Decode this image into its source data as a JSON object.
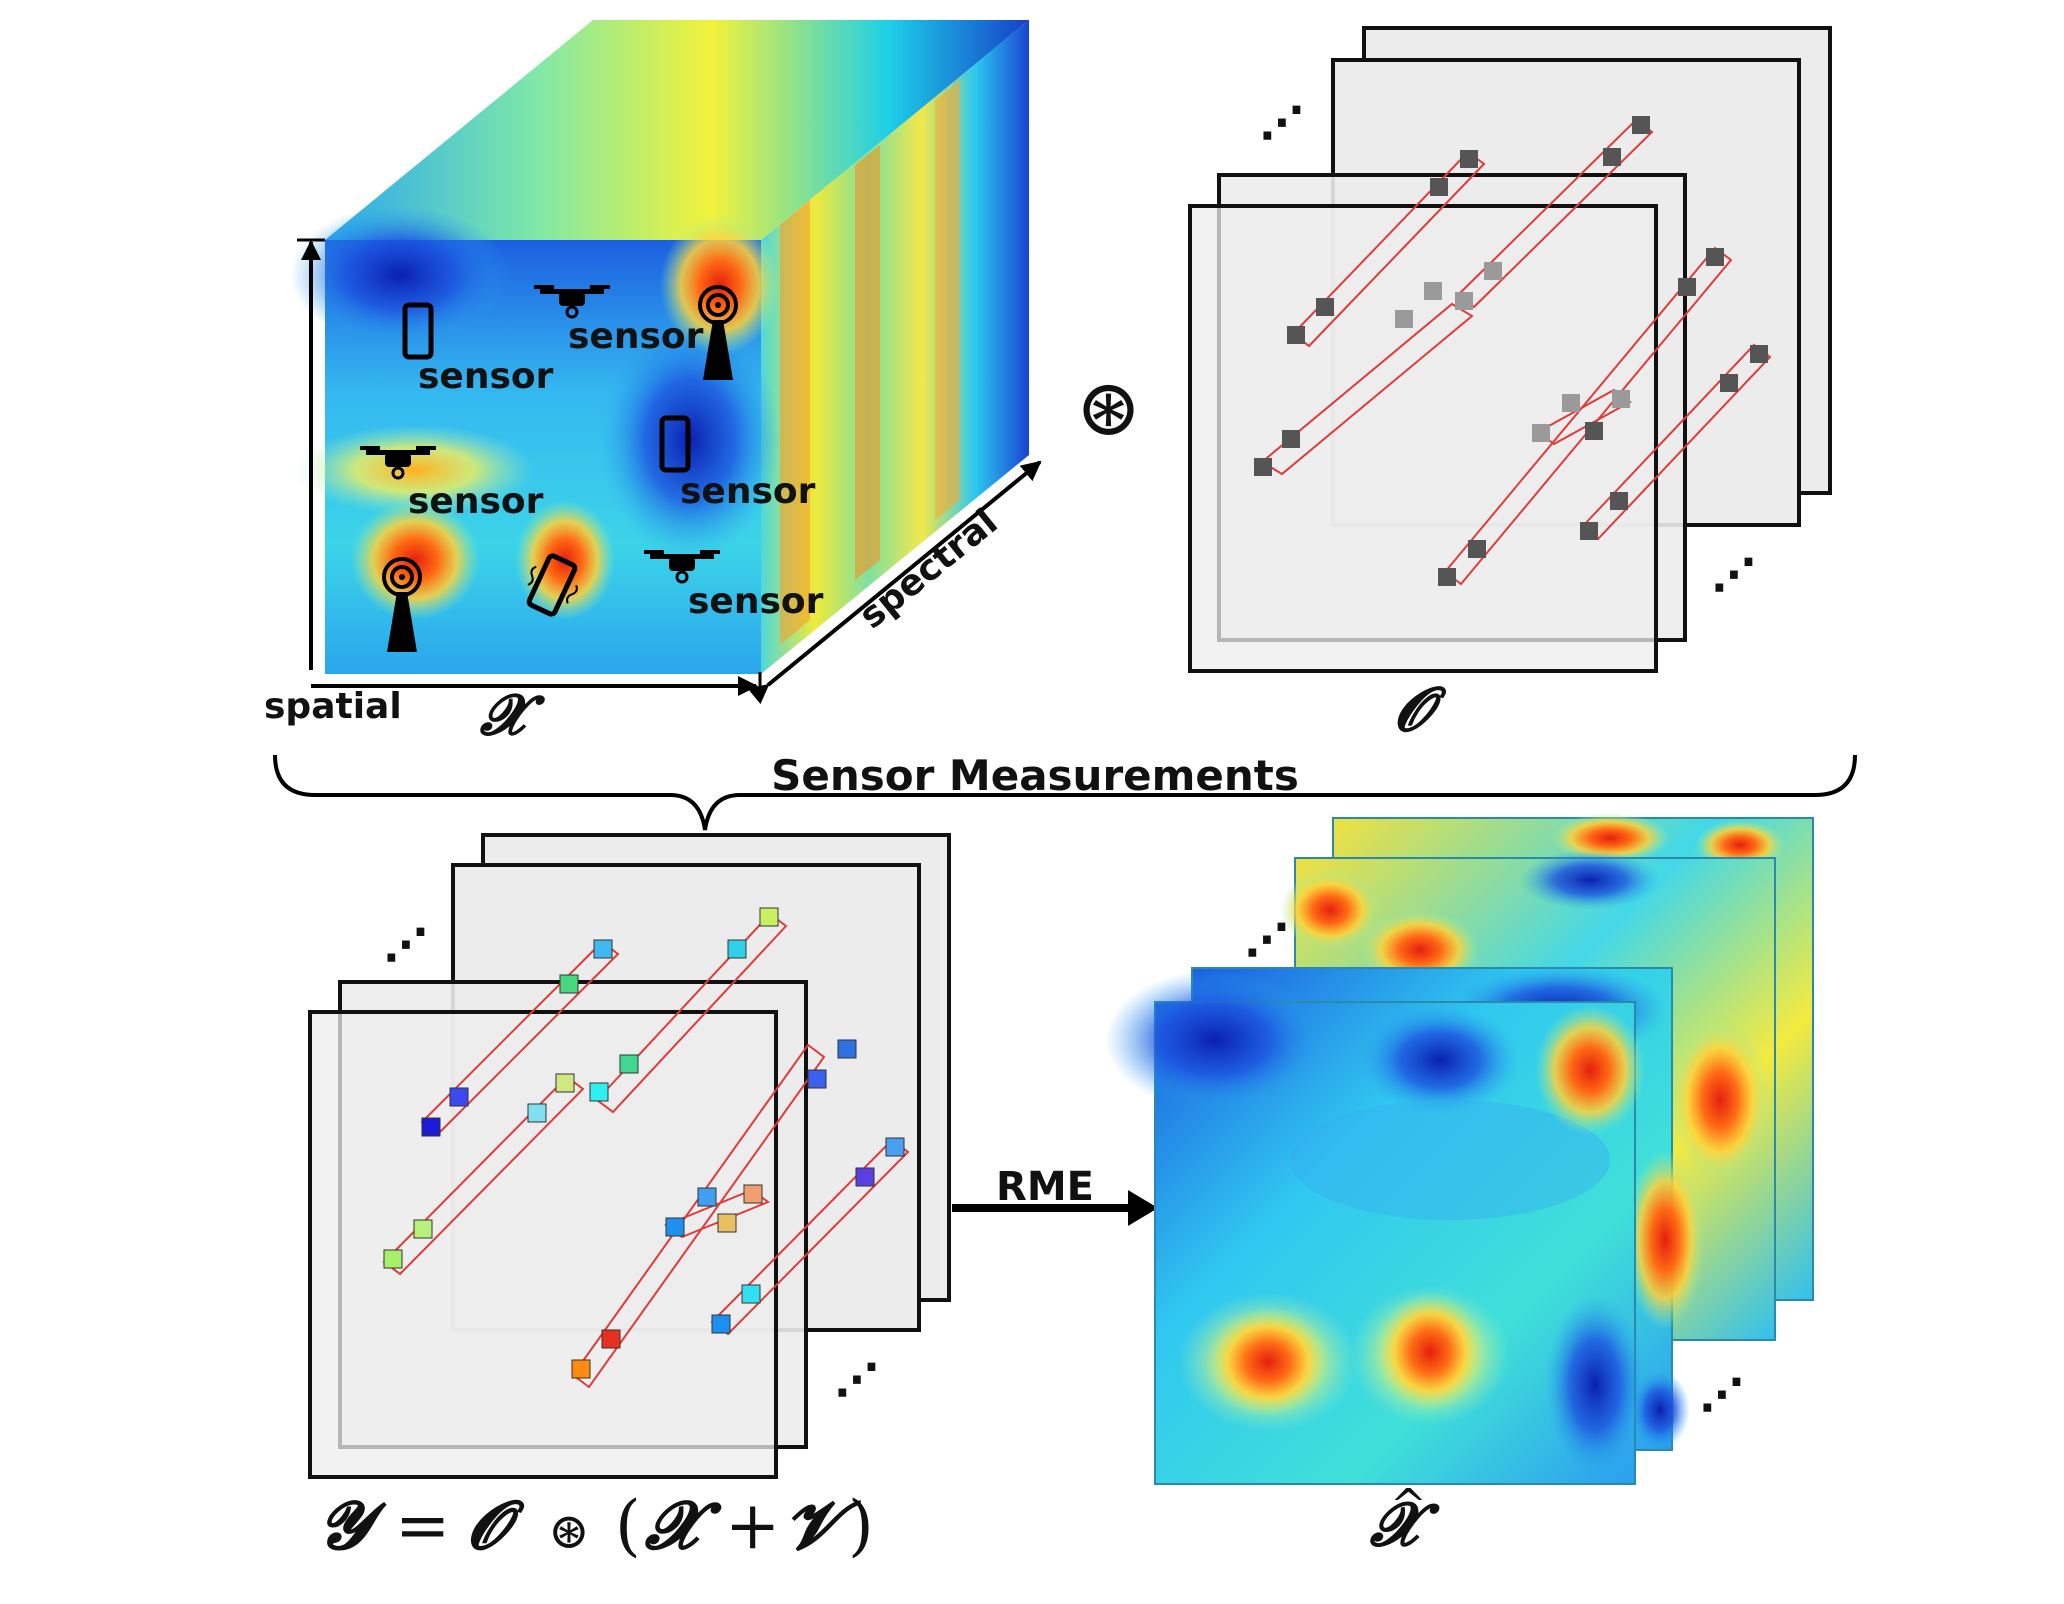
{
  "cube": {
    "sensor_label": "sensor",
    "spatial_label": "spatial",
    "spectral_label": "spectral",
    "symbol": "𝓧"
  },
  "mask": {
    "symbol": "𝓞",
    "operator": "⊛"
  },
  "brace_title": "Sensor Measurements",
  "measure_eq": {
    "Y": "𝓨",
    "eq": "=",
    "O": "𝓞",
    "op": "⊛",
    "lp": "(",
    "X": "𝓧",
    "plus": "+",
    "V": "𝓥",
    "rp": ")"
  },
  "arrow_label": "RME",
  "estimate": {
    "hat": "^",
    "symbol": "𝓧"
  },
  "ellipsis": "⋰",
  "colors": {
    "heat_low": "#1540d8",
    "heat_mid": "#27c8ef",
    "heat_high": "#ff4a10",
    "mask_cell_dark": "#555555",
    "mask_cell_light": "#9a9a9a",
    "tube_stroke": "#e03b3b"
  }
}
